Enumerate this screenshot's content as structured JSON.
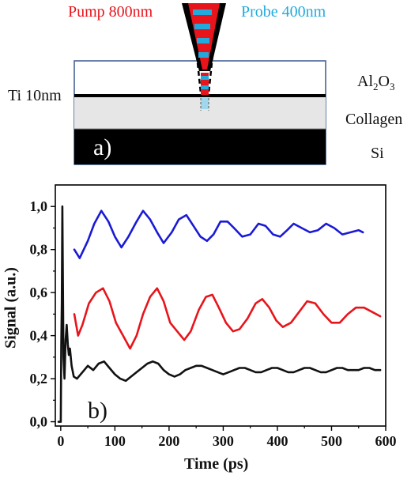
{
  "panel_a": {
    "pump_label": "Pump 800nm",
    "probe_label": "Probe 400nm",
    "ti_label": "Ti 10nm",
    "al2o3_main": "Al",
    "al2o3_sub1": "2",
    "al2o3_mid": "O",
    "al2o3_sub2": "3",
    "collagen_label": "Collagen",
    "si_label": "Si",
    "panel_letter": "a)",
    "colors": {
      "pump": "#e8141b",
      "probe": "#22aadd"
    }
  },
  "chart_data": {
    "type": "line",
    "panel_letter": "b)",
    "xlabel": "Time (ps)",
    "ylabel": "Signal (a.u.)",
    "xlim": [
      -10,
      600
    ],
    "ylim": [
      -0.02,
      1.1
    ],
    "xticks": [
      0,
      100,
      200,
      300,
      400,
      500,
      600
    ],
    "xtick_labels": [
      "0",
      "100",
      "200",
      "300",
      "400",
      "500",
      "600"
    ],
    "yticks": [
      0.0,
      0.2,
      0.4,
      0.6,
      0.8,
      1.0
    ],
    "ytick_labels": [
      "0,0",
      "0,2",
      "0,4",
      "0,6",
      "0,8",
      "1,0"
    ],
    "grid": false,
    "series": [
      {
        "color": "#1a1ad6",
        "x": [
          25,
          35,
          50,
          62,
          75,
          88,
          100,
          112,
          125,
          140,
          152,
          165,
          178,
          190,
          205,
          218,
          232,
          245,
          258,
          270,
          282,
          295,
          308,
          320,
          335,
          350,
          365,
          378,
          392,
          405,
          418,
          430,
          445,
          460,
          475,
          490,
          505,
          520,
          535,
          550,
          558
        ],
        "y": [
          0.8,
          0.76,
          0.84,
          0.92,
          0.98,
          0.93,
          0.86,
          0.81,
          0.86,
          0.93,
          0.98,
          0.94,
          0.88,
          0.83,
          0.88,
          0.94,
          0.96,
          0.91,
          0.86,
          0.84,
          0.87,
          0.93,
          0.93,
          0.9,
          0.86,
          0.87,
          0.92,
          0.91,
          0.87,
          0.86,
          0.89,
          0.92,
          0.9,
          0.88,
          0.89,
          0.92,
          0.9,
          0.87,
          0.88,
          0.89,
          0.88
        ]
      },
      {
        "color": "#e8141b",
        "x": [
          25,
          32,
          40,
          52,
          65,
          78,
          90,
          102,
          115,
          128,
          140,
          152,
          165,
          178,
          190,
          202,
          215,
          228,
          240,
          255,
          268,
          280,
          292,
          305,
          318,
          330,
          345,
          360,
          372,
          385,
          398,
          410,
          425,
          440,
          455,
          470,
          485,
          500,
          515,
          530,
          545,
          560,
          575,
          590
        ],
        "y": [
          0.5,
          0.4,
          0.45,
          0.55,
          0.6,
          0.62,
          0.56,
          0.46,
          0.4,
          0.34,
          0.4,
          0.5,
          0.58,
          0.62,
          0.56,
          0.46,
          0.42,
          0.38,
          0.42,
          0.52,
          0.58,
          0.59,
          0.53,
          0.46,
          0.42,
          0.43,
          0.48,
          0.55,
          0.57,
          0.53,
          0.47,
          0.44,
          0.46,
          0.51,
          0.56,
          0.55,
          0.5,
          0.46,
          0.46,
          0.5,
          0.53,
          0.53,
          0.51,
          0.49
        ]
      },
      {
        "color": "#111111",
        "x": [
          -4,
          0,
          1,
          2,
          3,
          5,
          7,
          9,
          11,
          13,
          15,
          17,
          20,
          24,
          30,
          40,
          50,
          60,
          70,
          80,
          90,
          100,
          110,
          120,
          130,
          140,
          150,
          160,
          170,
          180,
          190,
          200,
          210,
          220,
          230,
          240,
          250,
          260,
          270,
          280,
          290,
          300,
          310,
          320,
          330,
          340,
          350,
          360,
          370,
          380,
          390,
          400,
          410,
          420,
          430,
          440,
          450,
          460,
          470,
          480,
          490,
          500,
          510,
          520,
          530,
          540,
          550,
          560,
          570,
          580,
          590
        ],
        "y": [
          0.0,
          0.0,
          0.35,
          0.55,
          1.0,
          0.3,
          0.2,
          0.38,
          0.45,
          0.36,
          0.31,
          0.34,
          0.26,
          0.21,
          0.2,
          0.23,
          0.26,
          0.24,
          0.27,
          0.28,
          0.25,
          0.22,
          0.2,
          0.19,
          0.21,
          0.23,
          0.25,
          0.27,
          0.28,
          0.27,
          0.24,
          0.22,
          0.21,
          0.22,
          0.24,
          0.25,
          0.26,
          0.26,
          0.25,
          0.24,
          0.23,
          0.22,
          0.23,
          0.24,
          0.25,
          0.25,
          0.24,
          0.23,
          0.23,
          0.24,
          0.25,
          0.25,
          0.24,
          0.23,
          0.23,
          0.24,
          0.25,
          0.25,
          0.24,
          0.23,
          0.23,
          0.24,
          0.25,
          0.25,
          0.24,
          0.24,
          0.24,
          0.25,
          0.25,
          0.24,
          0.24
        ]
      }
    ]
  }
}
